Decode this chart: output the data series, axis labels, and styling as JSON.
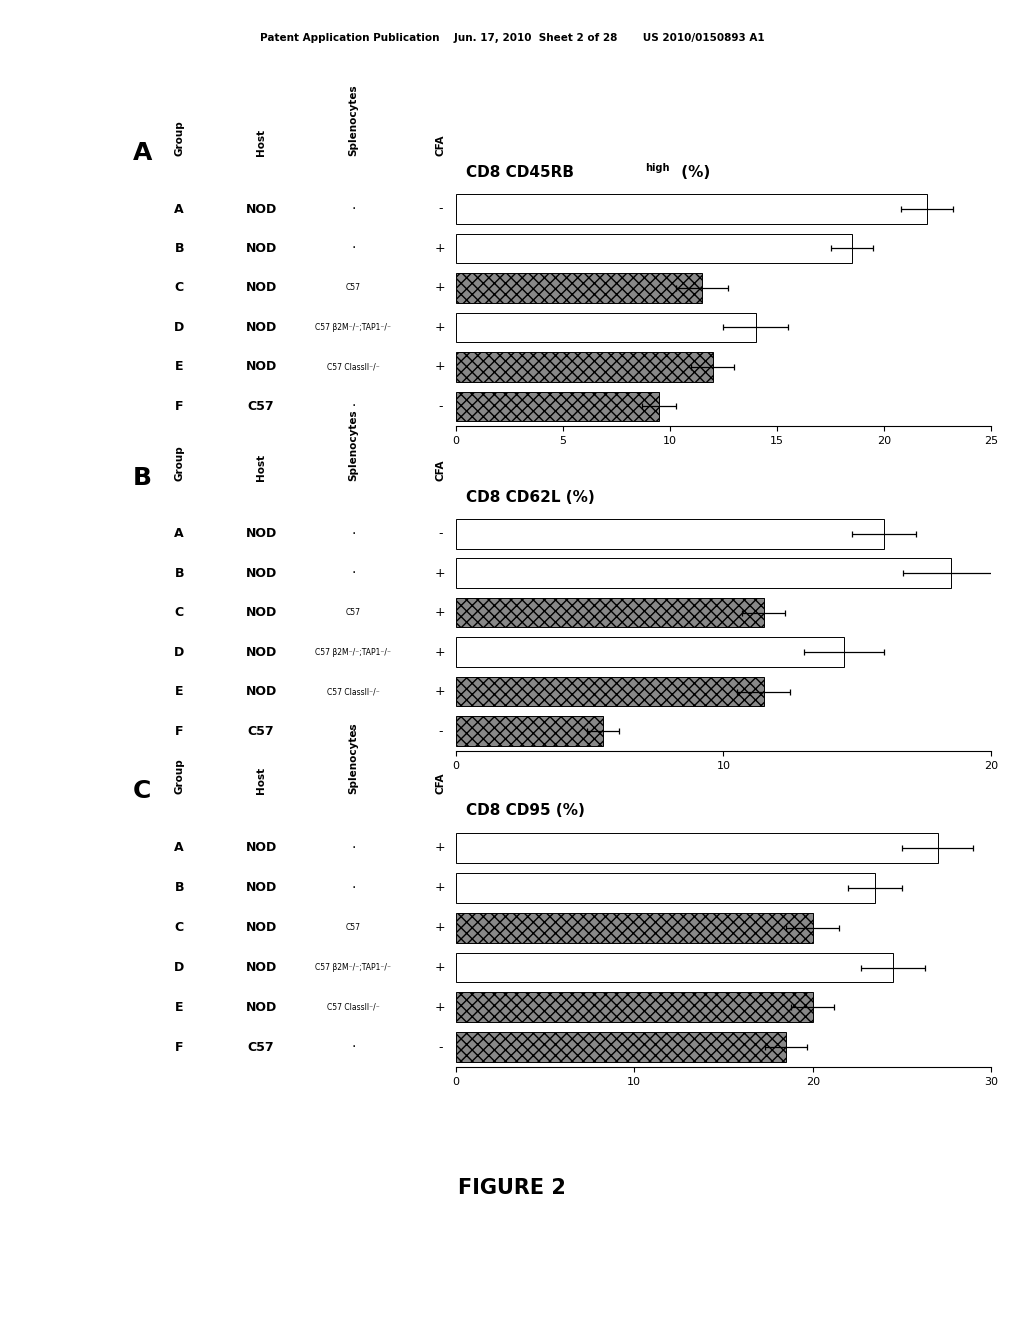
{
  "header_text": "Patent Application Publication    Jun. 17, 2010  Sheet 2 of 28       US 2010/0150893 A1",
  "figure_label": "FIGURE 2",
  "panels": [
    {
      "panel_label": "A",
      "chart_title_parts": [
        "CD8 CD45RB",
        "high",
        " (%)"
      ],
      "xlim": [
        0,
        25
      ],
      "xticks": [
        0,
        5,
        10,
        15,
        20,
        25
      ],
      "groups": [
        "A",
        "B",
        "C",
        "D",
        "E",
        "F"
      ],
      "hosts": [
        "NOD",
        "NOD",
        "NOD",
        "NOD",
        "NOD",
        "C57"
      ],
      "splenocytes": [
        "-",
        "-",
        "C57",
        "C57 β2M⁻/⁻;TAP1⁻/⁻",
        "C57 ClassII⁻/⁻",
        "-"
      ],
      "cfa": [
        "-",
        "+",
        "+",
        "+",
        "+",
        "-"
      ],
      "values": [
        22.0,
        18.5,
        11.5,
        14.0,
        12.0,
        9.5
      ],
      "errors": [
        1.2,
        1.0,
        1.2,
        1.5,
        1.0,
        0.8
      ],
      "colors": [
        "white",
        "white",
        "gray",
        "white",
        "gray",
        "gray"
      ]
    },
    {
      "panel_label": "B",
      "chart_title_parts": [
        "CD8 CD62L (%)"
      ],
      "xlim": [
        0,
        20
      ],
      "xticks": [
        0,
        10,
        20
      ],
      "groups": [
        "A",
        "B",
        "C",
        "D",
        "E",
        "F"
      ],
      "hosts": [
        "NOD",
        "NOD",
        "NOD",
        "NOD",
        "NOD",
        "C57"
      ],
      "splenocytes": [
        "-",
        "-",
        "C57",
        "C57 β2M⁻/⁻;TAP1⁻/⁻",
        "C57 ClassII⁻/⁻",
        "-"
      ],
      "cfa": [
        "-",
        "+",
        "+",
        "+",
        "+",
        "-"
      ],
      "values": [
        16.0,
        18.5,
        11.5,
        14.5,
        11.5,
        5.5
      ],
      "errors": [
        1.2,
        1.8,
        0.8,
        1.5,
        1.0,
        0.6
      ],
      "colors": [
        "white",
        "white",
        "gray",
        "white",
        "gray",
        "gray"
      ]
    },
    {
      "panel_label": "C",
      "chart_title_parts": [
        "CD8 CD95 (%)"
      ],
      "xlim": [
        0,
        30
      ],
      "xticks": [
        0,
        10,
        20,
        30
      ],
      "groups": [
        "A",
        "B",
        "C",
        "D",
        "E",
        "F"
      ],
      "hosts": [
        "NOD",
        "NOD",
        "NOD",
        "NOD",
        "NOD",
        "C57"
      ],
      "splenocytes": [
        "-",
        "-",
        "C57",
        "C57 β2M⁻/⁻;TAP1⁻/⁻",
        "C57 ClassII⁻/⁻",
        "-"
      ],
      "cfa": [
        "+",
        "+",
        "+",
        "+",
        "+",
        "-"
      ],
      "values": [
        27.0,
        23.5,
        20.0,
        24.5,
        20.0,
        18.5
      ],
      "errors": [
        2.0,
        1.5,
        1.5,
        1.8,
        1.2,
        1.2
      ],
      "colors": [
        "white",
        "white",
        "gray",
        "white",
        "gray",
        "gray"
      ]
    }
  ]
}
